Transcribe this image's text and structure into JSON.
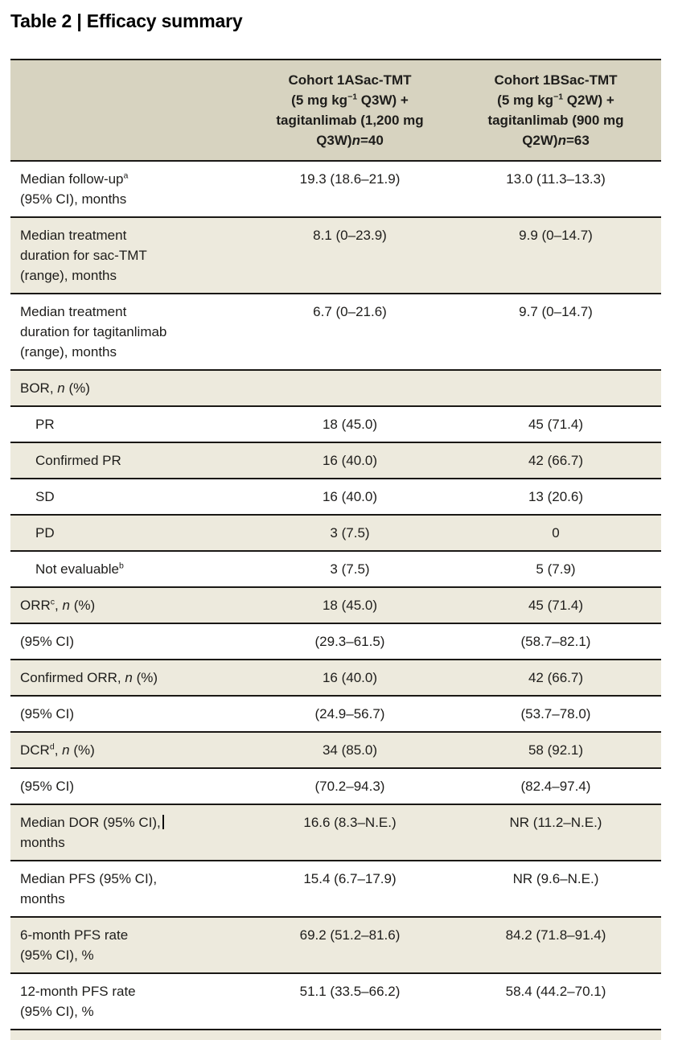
{
  "title": "Table 2 | Efficacy summary",
  "colors": {
    "header_bg": "#d7d3c0",
    "row_alt_bg": "#edeadd",
    "row_bg": "#ffffff",
    "rule": "#1a1815",
    "text": "#1e1d1b"
  },
  "table": {
    "columns": [
      "",
      "Cohort 1ASac-TMT\n(5 mg kg^−1^ Q3W) +\ntagitanlimab (1,200 mg\nQ3W)*n*=40",
      "Cohort 1BSac-TMT\n(5 mg kg^−1^ Q2W) +\ntagitanlimab (900 mg\nQ2W)*n*=63"
    ],
    "rows": [
      {
        "label": "Median follow-up^a^\n(95% CI), months",
        "values": [
          "19.3 (18.6–21.9)",
          "13.0 (11.3–13.3)"
        ],
        "shade": false,
        "indent": false
      },
      {
        "label": "Median treatment\nduration for sac-TMT\n(range), months",
        "values": [
          "8.1 (0–23.9)",
          "9.9 (0–14.7)"
        ],
        "shade": true,
        "indent": false
      },
      {
        "label": "Median treatment\nduration for tagitanlimab\n(range), months",
        "values": [
          "6.7 (0–21.6)",
          "9.7 (0–14.7)"
        ],
        "shade": false,
        "indent": false
      },
      {
        "label": "BOR, *n* (%)",
        "values": [
          "",
          ""
        ],
        "shade": true,
        "indent": false
      },
      {
        "label": "PR",
        "values": [
          "18 (45.0)",
          "45 (71.4)"
        ],
        "shade": false,
        "indent": true
      },
      {
        "label": "Confirmed PR",
        "values": [
          "16 (40.0)",
          "42 (66.7)"
        ],
        "shade": true,
        "indent": true
      },
      {
        "label": "SD",
        "values": [
          "16 (40.0)",
          "13 (20.6)"
        ],
        "shade": false,
        "indent": true
      },
      {
        "label": "PD",
        "values": [
          "3 (7.5)",
          "0"
        ],
        "shade": true,
        "indent": true
      },
      {
        "label": "Not evaluable^b^",
        "values": [
          "3 (7.5)",
          "5 (7.9)"
        ],
        "shade": false,
        "indent": true
      },
      {
        "label": "ORR^c^, *n* (%)",
        "values": [
          "18 (45.0)",
          "45 (71.4)"
        ],
        "shade": true,
        "indent": false
      },
      {
        "label": "(95% CI)",
        "values": [
          "(29.3–61.5)",
          "(58.7–82.1)"
        ],
        "shade": false,
        "indent": false
      },
      {
        "label": "Confirmed ORR, *n* (%)",
        "values": [
          "16 (40.0)",
          "42 (66.7)"
        ],
        "shade": true,
        "indent": false
      },
      {
        "label": "(95% CI)",
        "values": [
          "(24.9–56.7)",
          "(53.7–78.0)"
        ],
        "shade": false,
        "indent": false
      },
      {
        "label": "DCR^d^, *n* (%)",
        "values": [
          "34 (85.0)",
          "58 (92.1)"
        ],
        "shade": true,
        "indent": false
      },
      {
        "label": "(95% CI)",
        "values": [
          "(70.2–94.3)",
          "(82.4–97.4)"
        ],
        "shade": false,
        "indent": false
      },
      {
        "label": "Median DOR (95% CI),[caret]\nmonths",
        "values": [
          "16.6 (8.3–N.E.)",
          "NR (11.2–N.E.)"
        ],
        "shade": true,
        "indent": false
      },
      {
        "label": "Median PFS (95% CI),\nmonths",
        "values": [
          "15.4 (6.7–17.9)",
          "NR (9.6–N.E.)"
        ],
        "shade": false,
        "indent": false
      },
      {
        "label": "6-month PFS rate\n(95% CI), %",
        "values": [
          "69.2 (51.2–81.6)",
          "84.2 (71.8–91.4)"
        ],
        "shade": true,
        "indent": false
      },
      {
        "label": "12-month PFS rate\n(95% CI), %",
        "values": [
          "51.1 (33.5–66.2)",
          "58.4 (44.2–70.1)"
        ],
        "shade": false,
        "indent": false
      }
    ]
  }
}
